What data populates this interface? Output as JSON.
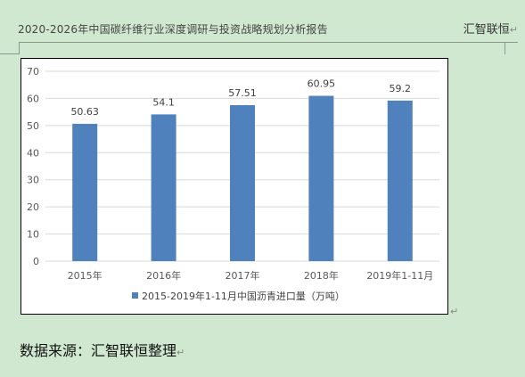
{
  "header": {
    "title": "2020-2026年中国碳纤维行业深度调研与投资战略规划分析报告",
    "brand": "汇智联恒"
  },
  "paragraph_mark": "↵",
  "source_text": "数据来源：汇智联恒整理",
  "colors": {
    "bar": "#4f81bd",
    "gridline": "#d9d9d9",
    "background": "#cfe8cf"
  },
  "chart_data": {
    "type": "bar",
    "categories": [
      "2015年",
      "2016年",
      "2017年",
      "2018年",
      "2019年1-11月"
    ],
    "series": [
      {
        "name": "2015-2019年1-11月中国沥青进口量（万吨）",
        "values": [
          50.63,
          54.1,
          57.51,
          60.95,
          59.2
        ]
      }
    ],
    "data_labels": [
      "50.63",
      "54.1",
      "57.51",
      "60.95",
      "59.2"
    ],
    "ylim": [
      0,
      70
    ],
    "yticks": [
      0,
      10,
      20,
      30,
      40,
      50,
      60,
      70
    ],
    "grid": true,
    "legend_position": "bottom"
  }
}
